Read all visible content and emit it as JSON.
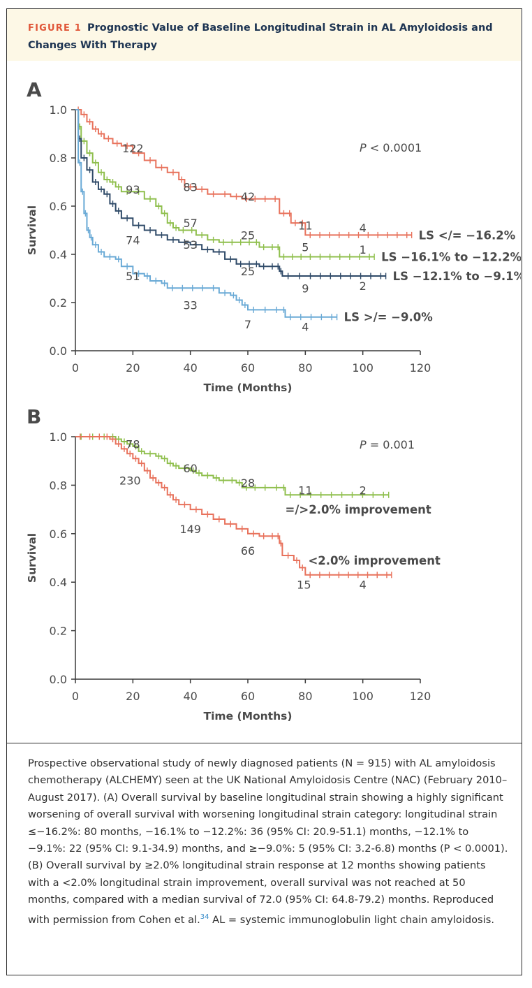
{
  "figure_label": "FIGURE 1",
  "figure_title": "Prognostic Value of Baseline Longitudinal Strain in AL Amyloidosis and Changes With Therapy",
  "caption": {
    "text": "Prospective observational study of newly diagnosed patients (N = 915) with AL amyloidosis chemotherapy (ALCHEMY) seen at the UK National Amyloidosis Centre (NAC) (February 2010–August 2017). (A) Overall survival by baseline longitudinal strain showing a highly significant worsening of overall survival with worsening longitudinal strain category: longitudinal strain ≤−16.2%: 80 months, −16.1% to −12.2%: 36 (95% CI: 20.9-51.1) months, −12.1% to −9.1%: 22 (95% CI: 9.1-34.9) months, and ≥−9.0%: 5 (95% CI: 3.2-6.8) months (P < 0.0001). (B) Overall survival by ≥2.0% longitudinal strain response at 12 months showing patients with a <2.0% longitudinal strain improvement, overall survival was not reached at 50 months, compared with a median survival of 72.0 (95% CI: 64.8-79.2) months. Reproduced with permission from Cohen et al.",
    "ref": "34",
    "tail": " AL = systemic immunoglobulin light chain amyloidosis."
  },
  "chart_data": [
    {
      "panel": "A",
      "type": "line",
      "xlabel": "Time (Months)",
      "ylabel": "Survival",
      "xlim": [
        0,
        120
      ],
      "ylim": [
        0,
        1.0
      ],
      "xticks": [
        "0",
        "20",
        "40",
        "60",
        "80",
        "100",
        "120"
      ],
      "yticks": [
        "0.0",
        "0.2",
        "0.4",
        "0.6",
        "0.8",
        "1.0"
      ],
      "annotation": "P < 0.0001",
      "series": [
        {
          "name": "LS </= −16.2%",
          "color": "#e8725c",
          "points": [
            [
              0,
              1.0
            ],
            [
              2,
              0.98
            ],
            [
              4,
              0.95
            ],
            [
              6,
              0.92
            ],
            [
              8,
              0.9
            ],
            [
              10,
              0.88
            ],
            [
              13,
              0.86
            ],
            [
              16,
              0.85
            ],
            [
              20,
              0.82
            ],
            [
              24,
              0.79
            ],
            [
              28,
              0.76
            ],
            [
              32,
              0.74
            ],
            [
              36,
              0.71
            ],
            [
              38,
              0.68
            ],
            [
              42,
              0.67
            ],
            [
              46,
              0.65
            ],
            [
              50,
              0.65
            ],
            [
              54,
              0.64
            ],
            [
              58,
              0.63
            ],
            [
              64,
              0.63
            ],
            [
              68,
              0.63
            ],
            [
              71,
              0.57
            ],
            [
              74,
              0.57
            ],
            [
              75,
              0.53
            ],
            [
              78,
              0.53
            ],
            [
              80,
              0.48
            ],
            [
              117,
              0.48
            ]
          ],
          "at_risk": [
            {
              "x": 20,
              "label": "122"
            },
            {
              "x": 40,
              "label": "83"
            },
            {
              "x": 60,
              "label": "42"
            },
            {
              "x": 80,
              "label": "11"
            },
            {
              "x": 100,
              "label": "4"
            }
          ]
        },
        {
          "name": "LS −16.1% to −12.2%",
          "color": "#8fbf4d",
          "points": [
            [
              0,
              1.0
            ],
            [
              1,
              0.93
            ],
            [
              2,
              0.87
            ],
            [
              4,
              0.82
            ],
            [
              6,
              0.78
            ],
            [
              8,
              0.74
            ],
            [
              10,
              0.71
            ],
            [
              12,
              0.7
            ],
            [
              14,
              0.68
            ],
            [
              16,
              0.66
            ],
            [
              20,
              0.66
            ],
            [
              24,
              0.63
            ],
            [
              28,
              0.6
            ],
            [
              30,
              0.57
            ],
            [
              32,
              0.53
            ],
            [
              34,
              0.51
            ],
            [
              36,
              0.5
            ],
            [
              42,
              0.48
            ],
            [
              46,
              0.46
            ],
            [
              50,
              0.45
            ],
            [
              56,
              0.45
            ],
            [
              62,
              0.45
            ],
            [
              64,
              0.43
            ],
            [
              70,
              0.43
            ],
            [
              71,
              0.39
            ],
            [
              80,
              0.39
            ],
            [
              104,
              0.39
            ]
          ],
          "at_risk": [
            {
              "x": 20,
              "label": "93"
            },
            {
              "x": 40,
              "label": "57"
            },
            {
              "x": 60,
              "label": "25"
            },
            {
              "x": 80,
              "label": "5"
            },
            {
              "x": 100,
              "label": "1"
            }
          ]
        },
        {
          "name": "LS −12.1% to −9.1%",
          "color": "#2f4a68",
          "points": [
            [
              0,
              1.0
            ],
            [
              1,
              0.88
            ],
            [
              2,
              0.8
            ],
            [
              4,
              0.75
            ],
            [
              6,
              0.7
            ],
            [
              8,
              0.67
            ],
            [
              10,
              0.65
            ],
            [
              12,
              0.61
            ],
            [
              14,
              0.58
            ],
            [
              16,
              0.55
            ],
            [
              20,
              0.52
            ],
            [
              24,
              0.5
            ],
            [
              28,
              0.48
            ],
            [
              32,
              0.46
            ],
            [
              36,
              0.45
            ],
            [
              40,
              0.44
            ],
            [
              44,
              0.42
            ],
            [
              48,
              0.41
            ],
            [
              52,
              0.38
            ],
            [
              56,
              0.36
            ],
            [
              62,
              0.36
            ],
            [
              64,
              0.35
            ],
            [
              70,
              0.35
            ],
            [
              71,
              0.33
            ],
            [
              72,
              0.31
            ],
            [
              80,
              0.31
            ],
            [
              108,
              0.31
            ]
          ],
          "at_risk": [
            {
              "x": 20,
              "label": "74"
            },
            {
              "x": 40,
              "label": "53"
            },
            {
              "x": 60,
              "label": "25"
            },
            {
              "x": 80,
              "label": "9"
            },
            {
              "x": 100,
              "label": "2"
            }
          ]
        },
        {
          "name": "LS >/= −9.0%",
          "color": "#6aaad6",
          "points": [
            [
              0,
              1.0
            ],
            [
              1,
              0.78
            ],
            [
              2,
              0.66
            ],
            [
              3,
              0.57
            ],
            [
              4,
              0.5
            ],
            [
              5,
              0.47
            ],
            [
              6,
              0.44
            ],
            [
              8,
              0.41
            ],
            [
              10,
              0.39
            ],
            [
              14,
              0.38
            ],
            [
              16,
              0.35
            ],
            [
              20,
              0.32
            ],
            [
              24,
              0.31
            ],
            [
              26,
              0.29
            ],
            [
              30,
              0.28
            ],
            [
              32,
              0.26
            ],
            [
              46,
              0.26
            ],
            [
              50,
              0.24
            ],
            [
              54,
              0.23
            ],
            [
              56,
              0.21
            ],
            [
              58,
              0.19
            ],
            [
              60,
              0.17
            ],
            [
              72,
              0.17
            ],
            [
              73,
              0.14
            ],
            [
              91,
              0.14
            ]
          ],
          "at_risk": [
            {
              "x": 20,
              "label": "51"
            },
            {
              "x": 40,
              "label": "33"
            },
            {
              "x": 60,
              "label": "7"
            },
            {
              "x": 80,
              "label": "4"
            }
          ]
        }
      ]
    },
    {
      "panel": "B",
      "type": "line",
      "xlabel": "Time (Months)",
      "ylabel": "Survival",
      "xlim": [
        0,
        120
      ],
      "ylim": [
        0,
        1.0
      ],
      "xticks": [
        "0",
        "20",
        "40",
        "60",
        "80",
        "100",
        "120"
      ],
      "yticks": [
        "0.0",
        "0.2",
        "0.4",
        "0.6",
        "0.8",
        "1.0"
      ],
      "annotation": "P = 0.001",
      "series": [
        {
          "name": "=/>2.0% improvement",
          "color": "#8fbf4d",
          "points": [
            [
              0,
              1.0
            ],
            [
              12,
              1.0
            ],
            [
              14,
              0.99
            ],
            [
              16,
              0.98
            ],
            [
              18,
              0.97
            ],
            [
              20,
              0.96
            ],
            [
              22,
              0.94
            ],
            [
              24,
              0.93
            ],
            [
              28,
              0.92
            ],
            [
              30,
              0.91
            ],
            [
              32,
              0.89
            ],
            [
              34,
              0.88
            ],
            [
              36,
              0.87
            ],
            [
              40,
              0.86
            ],
            [
              42,
              0.85
            ],
            [
              44,
              0.84
            ],
            [
              48,
              0.83
            ],
            [
              50,
              0.82
            ],
            [
              56,
              0.81
            ],
            [
              58,
              0.79
            ],
            [
              64,
              0.79
            ],
            [
              72,
              0.79
            ],
            [
              73,
              0.76
            ],
            [
              80,
              0.76
            ],
            [
              109,
              0.76
            ]
          ],
          "at_risk": [
            {
              "x": 20,
              "label": "78"
            },
            {
              "x": 40,
              "label": "60"
            },
            {
              "x": 60,
              "label": "28"
            },
            {
              "x": 80,
              "label": "11"
            },
            {
              "x": 100,
              "label": "2"
            }
          ]
        },
        {
          "name": "<2.0% improvement",
          "color": "#e8725c",
          "points": [
            [
              0,
              1.0
            ],
            [
              10,
              1.0
            ],
            [
              12,
              0.99
            ],
            [
              14,
              0.97
            ],
            [
              16,
              0.95
            ],
            [
              18,
              0.93
            ],
            [
              20,
              0.91
            ],
            [
              22,
              0.89
            ],
            [
              24,
              0.86
            ],
            [
              26,
              0.83
            ],
            [
              28,
              0.81
            ],
            [
              30,
              0.79
            ],
            [
              32,
              0.76
            ],
            [
              34,
              0.74
            ],
            [
              36,
              0.72
            ],
            [
              40,
              0.7
            ],
            [
              44,
              0.68
            ],
            [
              48,
              0.66
            ],
            [
              52,
              0.64
            ],
            [
              56,
              0.62
            ],
            [
              60,
              0.6
            ],
            [
              64,
              0.59
            ],
            [
              70,
              0.59
            ],
            [
              71,
              0.56
            ],
            [
              72,
              0.51
            ],
            [
              76,
              0.49
            ],
            [
              78,
              0.46
            ],
            [
              80,
              0.43
            ],
            [
              110,
              0.43
            ]
          ],
          "at_risk": [
            {
              "x": 20,
              "label": "230"
            },
            {
              "x": 40,
              "label": "149"
            },
            {
              "x": 60,
              "label": "66"
            },
            {
              "x": 80,
              "label": "15"
            },
            {
              "x": 100,
              "label": "4"
            }
          ]
        }
      ]
    }
  ]
}
